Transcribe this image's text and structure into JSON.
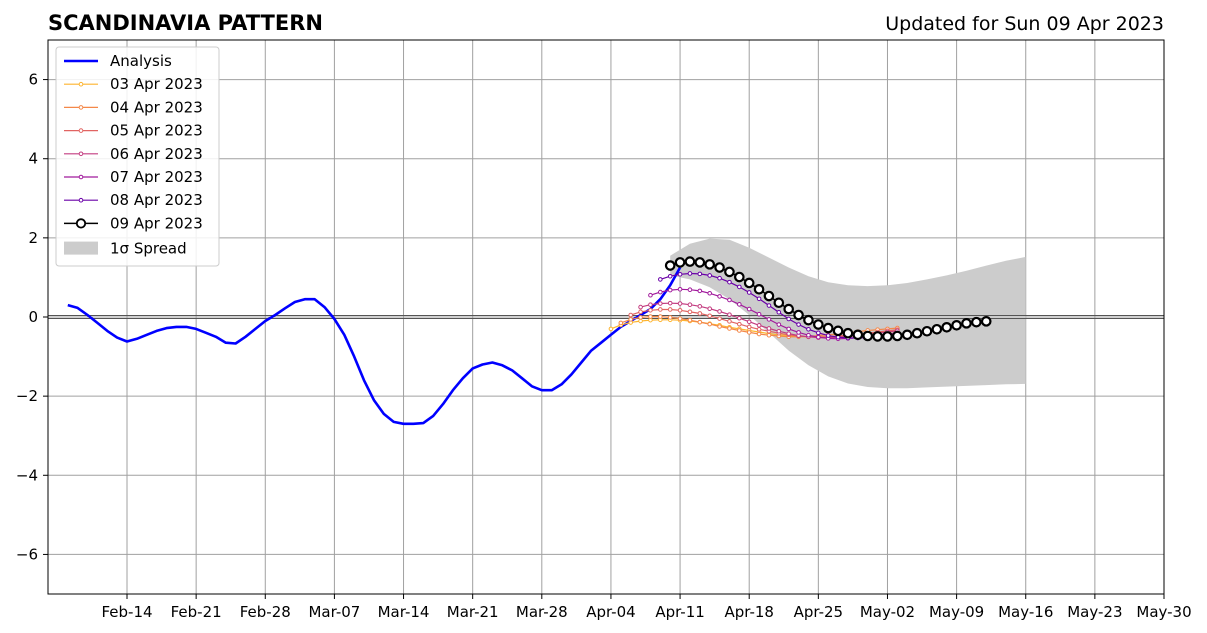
{
  "chart_data": {
    "type": "line",
    "title": "SCANDINAVIA PATTERN",
    "subtitle": "Updated for Sun 09 Apr 2023",
    "xlabel": "",
    "ylabel": "",
    "xlim": [
      "2023-02-06",
      "2023-05-30"
    ],
    "ylim": [
      -7,
      7
    ],
    "x_ticks": [
      {
        "date": "2023-02-14",
        "label": "Feb-14"
      },
      {
        "date": "2023-02-21",
        "label": "Feb-21"
      },
      {
        "date": "2023-02-28",
        "label": "Feb-28"
      },
      {
        "date": "2023-03-07",
        "label": "Mar-07"
      },
      {
        "date": "2023-03-14",
        "label": "Mar-14"
      },
      {
        "date": "2023-03-21",
        "label": "Mar-21"
      },
      {
        "date": "2023-03-28",
        "label": "Mar-28"
      },
      {
        "date": "2023-04-04",
        "label": "Apr-04"
      },
      {
        "date": "2023-04-11",
        "label": "Apr-11"
      },
      {
        "date": "2023-04-18",
        "label": "Apr-18"
      },
      {
        "date": "2023-04-25",
        "label": "Apr-25"
      },
      {
        "date": "2023-05-02",
        "label": "May-02"
      },
      {
        "date": "2023-05-09",
        "label": "May-09"
      },
      {
        "date": "2023-05-16",
        "label": "May-16"
      },
      {
        "date": "2023-05-23",
        "label": "May-23"
      },
      {
        "date": "2023-05-30",
        "label": "May-30"
      }
    ],
    "y_ticks": [
      {
        "value": -6,
        "label": "−6"
      },
      {
        "value": -4,
        "label": "−4"
      },
      {
        "value": -2,
        "label": "−2"
      },
      {
        "value": 0,
        "label": "0"
      },
      {
        "value": 2,
        "label": "2"
      },
      {
        "value": 4,
        "label": "4"
      },
      {
        "value": 6,
        "label": "6"
      }
    ],
    "grid": true,
    "legend_position": "top-left",
    "analysis": {
      "name": "Analysis",
      "color": "#0000ff",
      "points": [
        [
          "2023-02-08",
          0.3
        ],
        [
          "2023-02-09",
          0.23
        ],
        [
          "2023-02-10",
          0.05
        ],
        [
          "2023-02-11",
          -0.15
        ],
        [
          "2023-02-12",
          -0.35
        ],
        [
          "2023-02-13",
          -0.52
        ],
        [
          "2023-02-14",
          -0.62
        ],
        [
          "2023-02-15",
          -0.55
        ],
        [
          "2023-02-16",
          -0.45
        ],
        [
          "2023-02-17",
          -0.35
        ],
        [
          "2023-02-18",
          -0.28
        ],
        [
          "2023-02-19",
          -0.25
        ],
        [
          "2023-02-20",
          -0.25
        ],
        [
          "2023-02-21",
          -0.3
        ],
        [
          "2023-02-22",
          -0.4
        ],
        [
          "2023-02-23",
          -0.5
        ],
        [
          "2023-02-24",
          -0.65
        ],
        [
          "2023-02-25",
          -0.67
        ],
        [
          "2023-02-26",
          -0.5
        ],
        [
          "2023-02-27",
          -0.3
        ],
        [
          "2023-02-28",
          -0.1
        ],
        [
          "2023-03-01",
          0.05
        ],
        [
          "2023-03-02",
          0.22
        ],
        [
          "2023-03-03",
          0.38
        ],
        [
          "2023-03-04",
          0.45
        ],
        [
          "2023-03-05",
          0.45
        ],
        [
          "2023-03-06",
          0.25
        ],
        [
          "2023-03-07",
          -0.05
        ],
        [
          "2023-03-08",
          -0.45
        ],
        [
          "2023-03-09",
          -1.0
        ],
        [
          "2023-03-10",
          -1.6
        ],
        [
          "2023-03-11",
          -2.1
        ],
        [
          "2023-03-12",
          -2.45
        ],
        [
          "2023-03-13",
          -2.65
        ],
        [
          "2023-03-14",
          -2.7
        ],
        [
          "2023-03-15",
          -2.7
        ],
        [
          "2023-03-16",
          -2.68
        ],
        [
          "2023-03-17",
          -2.5
        ],
        [
          "2023-03-18",
          -2.2
        ],
        [
          "2023-03-19",
          -1.85
        ],
        [
          "2023-03-20",
          -1.55
        ],
        [
          "2023-03-21",
          -1.3
        ],
        [
          "2023-03-22",
          -1.2
        ],
        [
          "2023-03-23",
          -1.15
        ],
        [
          "2023-03-24",
          -1.22
        ],
        [
          "2023-03-25",
          -1.35
        ],
        [
          "2023-03-26",
          -1.55
        ],
        [
          "2023-03-27",
          -1.75
        ],
        [
          "2023-03-28",
          -1.85
        ],
        [
          "2023-03-29",
          -1.85
        ],
        [
          "2023-03-30",
          -1.7
        ],
        [
          "2023-03-31",
          -1.45
        ],
        [
          "2023-04-01",
          -1.15
        ],
        [
          "2023-04-02",
          -0.85
        ],
        [
          "2023-04-03",
          -0.65
        ],
        [
          "2023-04-04",
          -0.45
        ],
        [
          "2023-04-05",
          -0.25
        ],
        [
          "2023-04-06",
          -0.1
        ],
        [
          "2023-04-07",
          0.05
        ],
        [
          "2023-04-08",
          0.2
        ],
        [
          "2023-04-09",
          0.45
        ],
        [
          "2023-04-10",
          0.8
        ],
        [
          "2023-04-11",
          1.25
        ]
      ]
    },
    "forecasts": [
      {
        "name": "03 Apr 2023",
        "color": "#fdb42f",
        "start": "2023-04-04",
        "values": [
          -0.3,
          -0.2,
          -0.14,
          -0.1,
          -0.08,
          -0.07,
          -0.07,
          -0.08,
          -0.1,
          -0.13,
          -0.17,
          -0.21,
          -0.26,
          -0.3,
          -0.34,
          -0.38,
          -0.42,
          -0.45,
          -0.47,
          -0.49,
          -0.5,
          -0.5,
          -0.5,
          -0.48,
          -0.46,
          -0.44,
          -0.42,
          -0.4,
          -0.38,
          -0.36
        ]
      },
      {
        "name": "04 Apr 2023",
        "color": "#f48849",
        "start": "2023-04-05",
        "values": [
          -0.15,
          -0.06,
          -0.01,
          0.01,
          0.01,
          -0.01,
          -0.04,
          -0.08,
          -0.13,
          -0.18,
          -0.24,
          -0.29,
          -0.34,
          -0.39,
          -0.43,
          -0.46,
          -0.48,
          -0.5,
          -0.5,
          -0.49,
          -0.47,
          -0.45,
          -0.43,
          -0.4,
          -0.37,
          -0.34,
          -0.32,
          -0.3,
          -0.28
        ]
      },
      {
        "name": "05 Apr 2023",
        "color": "#e16462",
        "start": "2023-04-06",
        "values": [
          0.05,
          0.13,
          0.17,
          0.19,
          0.19,
          0.17,
          0.13,
          0.09,
          0.03,
          -0.04,
          -0.11,
          -0.18,
          -0.25,
          -0.31,
          -0.36,
          -0.41,
          -0.45,
          -0.48,
          -0.5,
          -0.5,
          -0.5,
          -0.48,
          -0.46,
          -0.44,
          -0.41,
          -0.38,
          -0.35,
          -0.32
        ]
      },
      {
        "name": "06 Apr 2023",
        "color": "#c33d80",
        "start": "2023-04-07",
        "values": [
          0.25,
          0.31,
          0.34,
          0.35,
          0.34,
          0.31,
          0.27,
          0.21,
          0.14,
          0.06,
          -0.03,
          -0.12,
          -0.21,
          -0.29,
          -0.36,
          -0.42,
          -0.47,
          -0.5,
          -0.52,
          -0.52,
          -0.51,
          -0.49,
          -0.47,
          -0.44,
          -0.41,
          -0.38,
          -0.35
        ]
      },
      {
        "name": "07 Apr 2023",
        "color": "#a11a9c",
        "start": "2023-04-08",
        "values": [
          0.55,
          0.63,
          0.68,
          0.7,
          0.69,
          0.66,
          0.6,
          0.52,
          0.43,
          0.32,
          0.2,
          0.07,
          -0.06,
          -0.19,
          -0.3,
          -0.39,
          -0.46,
          -0.51,
          -0.54,
          -0.55,
          -0.54,
          -0.52,
          -0.49,
          -0.46,
          -0.43,
          -0.4
        ]
      },
      {
        "name": "08 Apr 2023",
        "color": "#6a00a8",
        "start": "2023-04-09",
        "values": [
          0.95,
          1.03,
          1.08,
          1.1,
          1.09,
          1.05,
          0.98,
          0.88,
          0.76,
          0.62,
          0.46,
          0.29,
          0.12,
          -0.05,
          -0.19,
          -0.31,
          -0.4,
          -0.47,
          -0.51,
          -0.53,
          -0.53,
          -0.52,
          -0.5,
          -0.47,
          -0.44
        ]
      },
      {
        "name": "09 Apr 2023",
        "color": "#000000",
        "start": "2023-04-10",
        "values": [
          1.3,
          1.38,
          1.4,
          1.38,
          1.33,
          1.25,
          1.14,
          1.01,
          0.86,
          0.7,
          0.53,
          0.36,
          0.2,
          0.05,
          -0.08,
          -0.19,
          -0.28,
          -0.35,
          -0.41,
          -0.45,
          -0.48,
          -0.49,
          -0.49,
          -0.48,
          -0.45,
          -0.41,
          -0.36,
          -0.31,
          -0.26,
          -0.21,
          -0.16,
          -0.13,
          -0.11
        ]
      }
    ],
    "spread": {
      "name": "1σ Spread",
      "color": "#cccccc",
      "points": [
        [
          "2023-04-10",
          1.55,
          1.05
        ],
        [
          "2023-04-12",
          1.85,
          0.95
        ],
        [
          "2023-04-14",
          1.98,
          0.75
        ],
        [
          "2023-04-16",
          1.95,
          0.45
        ],
        [
          "2023-04-18",
          1.75,
          0.05
        ],
        [
          "2023-04-20",
          1.5,
          -0.4
        ],
        [
          "2023-04-22",
          1.25,
          -0.85
        ],
        [
          "2023-04-24",
          1.03,
          -1.22
        ],
        [
          "2023-04-26",
          0.88,
          -1.5
        ],
        [
          "2023-04-28",
          0.8,
          -1.68
        ],
        [
          "2023-04-30",
          0.78,
          -1.77
        ],
        [
          "2023-05-02",
          0.8,
          -1.8
        ],
        [
          "2023-05-04",
          0.86,
          -1.8
        ],
        [
          "2023-05-06",
          0.95,
          -1.78
        ],
        [
          "2023-05-08",
          1.05,
          -1.76
        ],
        [
          "2023-05-10",
          1.17,
          -1.74
        ],
        [
          "2023-05-12",
          1.3,
          -1.72
        ],
        [
          "2023-05-14",
          1.42,
          -1.7
        ],
        [
          "2023-05-16",
          1.52,
          -1.69
        ]
      ]
    }
  }
}
